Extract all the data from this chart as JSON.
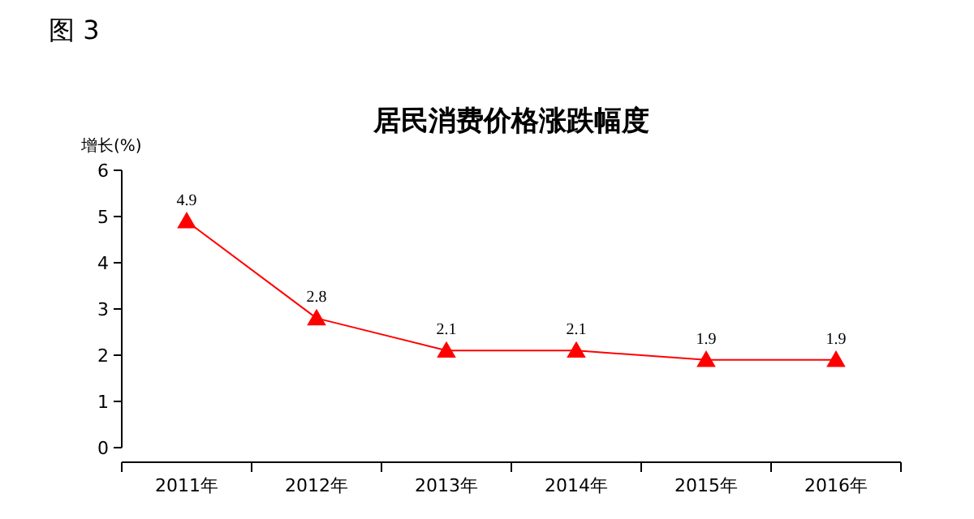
{
  "chart_data": {
    "type": "line",
    "title": "居民消费价格涨跌幅度",
    "ylabel": "增长(%)",
    "annotations": [
      "图 3"
    ],
    "categories": [
      "2011年",
      "2012年",
      "2013年",
      "2014年",
      "2015年",
      "2016年"
    ],
    "series": [
      {
        "color": "#ff0000",
        "values": [
          4.9,
          2.8,
          2.1,
          2.1,
          1.9,
          1.9
        ]
      }
    ],
    "ylim": [
      0,
      6
    ],
    "yticks": [
      0,
      1,
      2,
      3,
      4,
      5,
      6
    ],
    "grid": false,
    "marker": "triangle",
    "line_style": "solid",
    "data_labels": true
  }
}
